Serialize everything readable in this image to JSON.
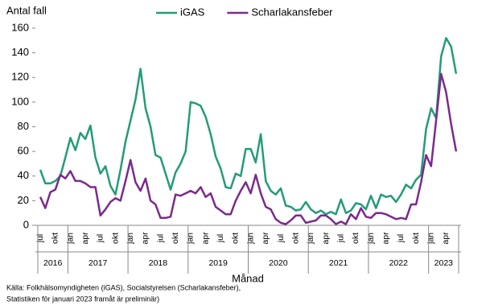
{
  "chart_data": {
    "type": "line",
    "y_label": "Antal fall",
    "x_label": "Månad",
    "source": [
      "Källa: Folkhälsomyndigheten (iGAS), Socialstyrelsen (Scharlakansfeber),",
      "Statistiken för januari 2023 framåt är preliminär)"
    ],
    "categories": [
      "jul",
      null,
      null,
      "okt",
      null,
      null,
      "jan",
      null,
      null,
      "apr",
      null,
      null,
      "jul",
      null,
      null,
      "okt",
      null,
      null,
      "jan",
      null,
      null,
      "apr",
      null,
      null,
      "jul",
      null,
      null,
      "okt",
      null,
      null,
      "jan",
      null,
      null,
      "apr",
      null,
      null,
      "jul",
      null,
      null,
      "okt",
      null,
      null,
      "jan",
      null,
      null,
      "apr",
      null,
      null,
      "jul",
      null,
      null,
      "okt",
      null,
      null,
      "jan",
      null,
      null,
      "apr",
      null,
      null,
      "jul",
      null,
      null,
      "okt",
      null,
      null,
      "jan",
      null,
      null,
      "apr",
      null,
      null,
      "jul",
      null,
      null,
      "okt",
      null,
      null,
      "jan",
      null,
      null,
      "apr",
      null,
      null
    ],
    "years": [
      "2016",
      "2017",
      "2018",
      "2019",
      "2020",
      "2021",
      "2022",
      "2023"
    ],
    "series": [
      {
        "name": "iGAS",
        "color": "#239c78",
        "values": [
          45,
          34,
          34,
          36,
          40,
          55,
          71,
          61,
          75,
          70,
          81,
          55,
          42,
          48,
          32,
          25,
          45,
          68,
          85,
          102,
          127,
          95,
          80,
          57,
          55,
          42,
          29,
          43,
          50,
          60,
          100,
          99,
          97,
          88,
          74,
          56,
          46,
          31,
          30,
          42,
          40,
          62,
          62,
          51,
          74,
          36,
          28,
          25,
          30,
          16,
          15,
          12,
          13,
          19,
          13,
          10,
          12,
          9,
          11,
          9,
          21,
          10,
          12,
          18,
          17,
          13,
          24,
          14,
          25,
          23,
          24,
          19,
          25,
          33,
          30,
          37,
          41,
          78,
          95,
          87,
          137,
          152,
          145,
          123
        ]
      },
      {
        "name": "Scharlakansfeber",
        "color": "#7b2a8c",
        "values": [
          23,
          14,
          27,
          29,
          41,
          38,
          44,
          36,
          36,
          34,
          31,
          31,
          8,
          13,
          19,
          22,
          20,
          36,
          53,
          35,
          28,
          38,
          20,
          17,
          6,
          6,
          7,
          25,
          24,
          26,
          28,
          26,
          31,
          23,
          26,
          15,
          12,
          9,
          9,
          20,
          28,
          35,
          26,
          41,
          26,
          15,
          13,
          5,
          2,
          1,
          4,
          8,
          8,
          2,
          3,
          4,
          8,
          8,
          5,
          1,
          3,
          1,
          9,
          5,
          14,
          7,
          6,
          10,
          10,
          9,
          7,
          5,
          6,
          5,
          17,
          17,
          35,
          57,
          48,
          85,
          123,
          108,
          82,
          60
        ]
      }
    ],
    "ylim": [
      0,
      160
    ],
    "yticks": [
      0,
      20,
      40,
      60,
      80,
      100,
      120,
      140,
      160
    ],
    "legend": "top"
  }
}
